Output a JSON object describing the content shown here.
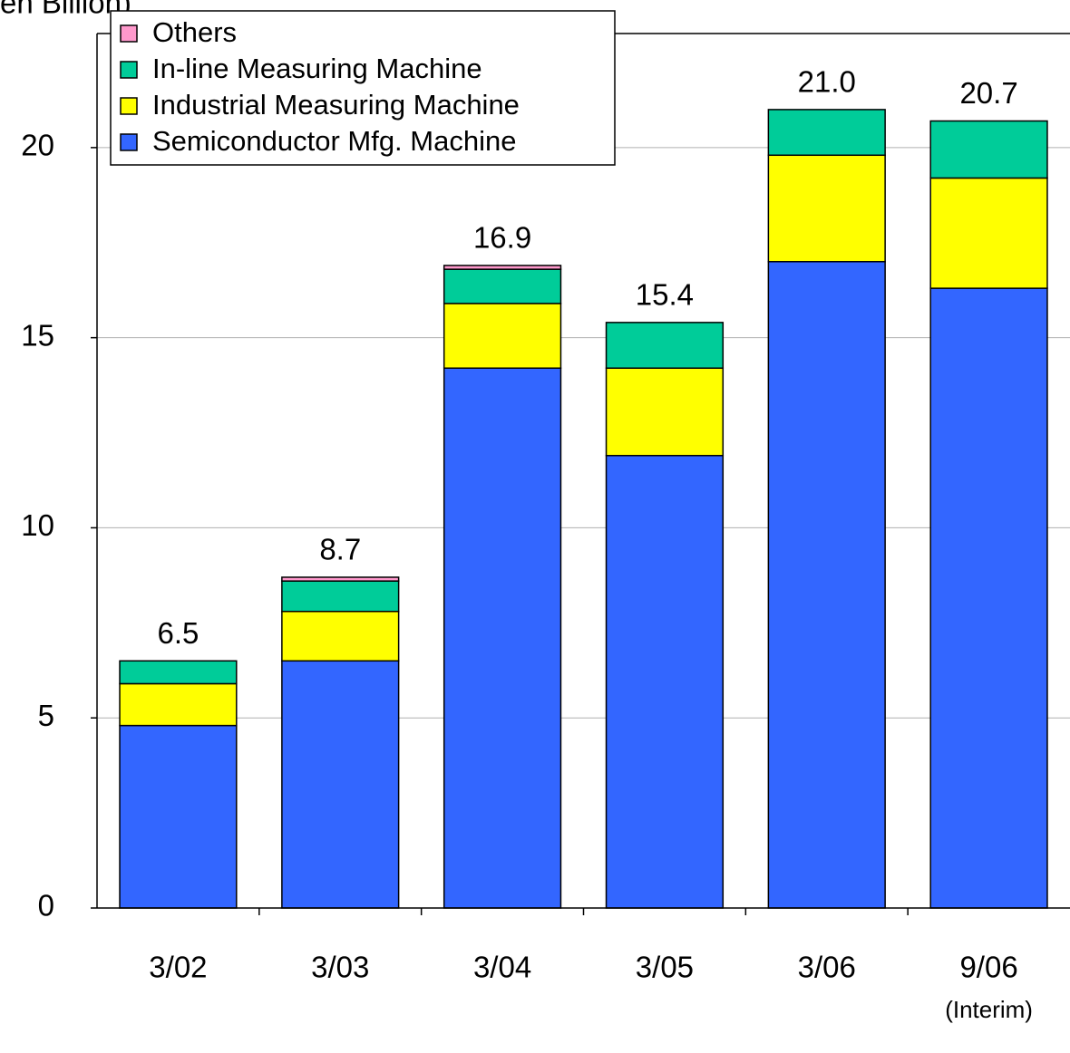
{
  "chart_data": {
    "type": "stacked_bar",
    "y_label": "en Billion)",
    "categories": [
      "3/02",
      "3/03",
      "3/04",
      "3/05",
      "3/06",
      "9/06"
    ],
    "annotation": "(Interim)",
    "series": [
      {
        "name": "Semiconductor Mfg. Machine",
        "color": "#3366ff",
        "values": [
          4.8,
          6.5,
          14.2,
          11.9,
          17.0,
          16.3
        ]
      },
      {
        "name": "Industrial Measuring Machine",
        "color": "#ffff00",
        "values": [
          1.1,
          1.3,
          1.7,
          2.3,
          2.8,
          2.9
        ]
      },
      {
        "name": "In-line Measuring Machine",
        "color": "#00cc99",
        "values": [
          0.6,
          0.8,
          0.9,
          1.2,
          1.2,
          1.5
        ]
      },
      {
        "name": "Others",
        "color": "#ff99cc",
        "values": [
          0,
          0.1,
          0.1,
          0,
          0,
          0
        ]
      }
    ],
    "totals": [
      6.5,
      8.7,
      16.9,
      15.4,
      21.0,
      20.7
    ],
    "total_labels": [
      "6.5",
      "8.7",
      "16.9",
      "15.4",
      "21.0",
      "20.7"
    ],
    "ylim": [
      0,
      23
    ],
    "yticks": [
      0,
      5,
      10,
      15,
      20
    ],
    "grid": true
  }
}
